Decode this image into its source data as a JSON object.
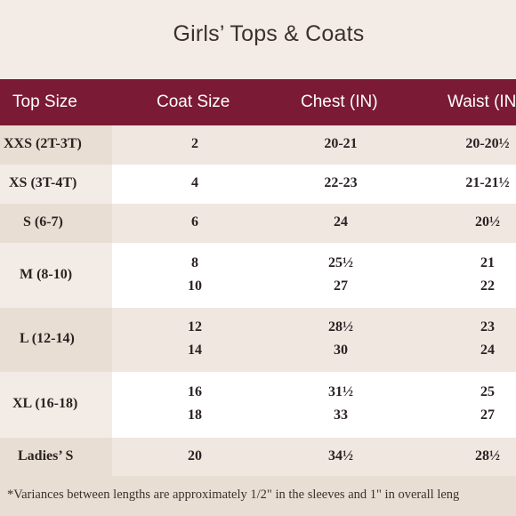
{
  "title": "Girls’ Tops & Coats",
  "columns": [
    "Top Size",
    "Coat Size",
    "Chest (IN)",
    "Waist (IN"
  ],
  "rows": [
    {
      "top": "XXS (2T-3T)",
      "coat": [
        "2"
      ],
      "chest": [
        "20-21"
      ],
      "waist": [
        "20-20½"
      ]
    },
    {
      "top": "XS (3T-4T)",
      "coat": [
        "4"
      ],
      "chest": [
        "22-23"
      ],
      "waist": [
        "21-21½"
      ]
    },
    {
      "top": "S (6-7)",
      "coat": [
        "6"
      ],
      "chest": [
        "24"
      ],
      "waist": [
        "20½"
      ]
    },
    {
      "top": "M (8-10)",
      "coat": [
        "8",
        "10"
      ],
      "chest": [
        "25½",
        "27"
      ],
      "waist": [
        "21",
        "22"
      ]
    },
    {
      "top": "L (12-14)",
      "coat": [
        "12",
        "14"
      ],
      "chest": [
        "28½",
        "30"
      ],
      "waist": [
        "23",
        "24"
      ]
    },
    {
      "top": "XL (16-18)",
      "coat": [
        "16",
        "18"
      ],
      "chest": [
        "31½",
        "33"
      ],
      "waist": [
        "25",
        "27"
      ]
    },
    {
      "top": "Ladies’ S",
      "coat": [
        "20"
      ],
      "chest": [
        "34½"
      ],
      "waist": [
        "28½"
      ]
    }
  ],
  "footnote": "*Variances between lengths are approximately 1/2\" in the sleeves and 1\" in overall leng",
  "colors": {
    "header": "#7a1a35",
    "background": "#f3ece6"
  }
}
